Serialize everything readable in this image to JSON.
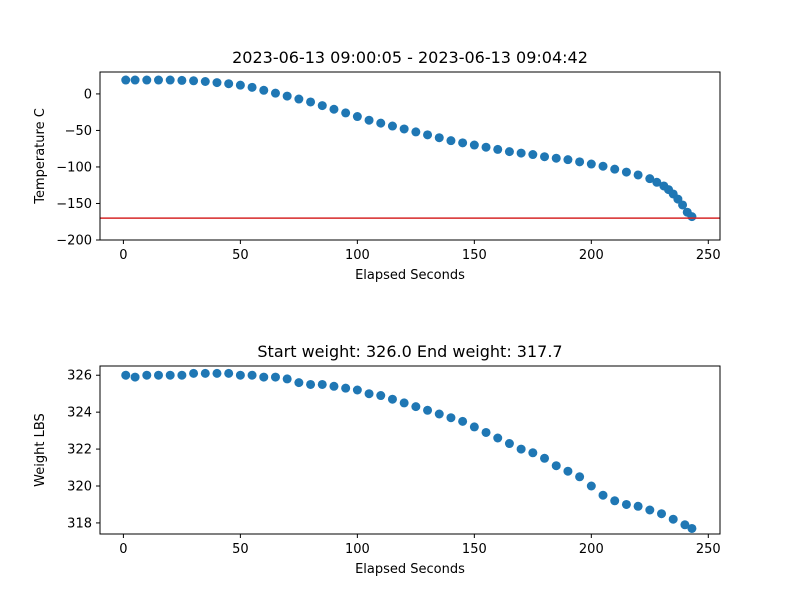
{
  "chart_data": [
    {
      "type": "scatter",
      "title": "2023-06-13 09:00:05 - 2023-06-13 09:04:42",
      "xlabel": "Elapsed Seconds",
      "ylabel": "Temperature C",
      "xlim": [
        -10,
        255
      ],
      "ylim": [
        -200,
        30
      ],
      "x_ticks": [
        0,
        50,
        100,
        150,
        200,
        250
      ],
      "y_ticks": [
        0,
        -50,
        -100,
        -150,
        -200
      ],
      "grid": false,
      "marker_color": "#1f77b4",
      "reference_line": {
        "y": -170,
        "color": "#d62728"
      },
      "series": [
        {
          "x": [
            1,
            5,
            10,
            15,
            20,
            25,
            30,
            35,
            40,
            45,
            50,
            55,
            60,
            65,
            70,
            75,
            80,
            85,
            90,
            95,
            100,
            105,
            110,
            115,
            120,
            125,
            130,
            135,
            140,
            145,
            150,
            155,
            160,
            165,
            170,
            175,
            180,
            185,
            190,
            195,
            200,
            205,
            210,
            215,
            220,
            225,
            228,
            231,
            233,
            235,
            237,
            239,
            241,
            243
          ],
          "y": [
            19,
            19,
            19,
            19,
            19,
            18.5,
            18,
            17,
            15.5,
            14,
            12,
            9,
            5,
            1,
            -3,
            -7,
            -11,
            -16,
            -21,
            -26,
            -31,
            -36,
            -40,
            -44,
            -48,
            -52,
            -56,
            -60,
            -64,
            -67,
            -70,
            -73,
            -76,
            -79,
            -81,
            -83,
            -86,
            -88,
            -90,
            -93,
            -96,
            -99,
            -103,
            -107,
            -111,
            -116,
            -121,
            -126,
            -131,
            -137,
            -144,
            -152,
            -162,
            -168
          ]
        }
      ]
    },
    {
      "type": "scatter",
      "title": "Start weight: 326.0 End weight: 317.7",
      "xlabel": "Elapsed Seconds",
      "ylabel": "Weight LBS",
      "xlim": [
        -10,
        255
      ],
      "ylim": [
        317.4,
        326.5
      ],
      "x_ticks": [
        0,
        50,
        100,
        150,
        200,
        250
      ],
      "y_ticks": [
        318,
        320,
        322,
        324,
        326
      ],
      "grid": false,
      "marker_color": "#1f77b4",
      "series": [
        {
          "x": [
            1,
            5,
            10,
            15,
            20,
            25,
            30,
            35,
            40,
            45,
            50,
            55,
            60,
            65,
            70,
            75,
            80,
            85,
            90,
            95,
            100,
            105,
            110,
            115,
            120,
            125,
            130,
            135,
            140,
            145,
            150,
            155,
            160,
            165,
            170,
            175,
            180,
            185,
            190,
            195,
            200,
            205,
            210,
            215,
            220,
            225,
            230,
            235,
            240,
            243
          ],
          "y": [
            326.0,
            325.9,
            326.0,
            326.0,
            326.0,
            326.0,
            326.1,
            326.1,
            326.1,
            326.1,
            326.0,
            326.0,
            325.9,
            325.9,
            325.8,
            325.6,
            325.5,
            325.5,
            325.4,
            325.3,
            325.2,
            325.0,
            324.9,
            324.7,
            324.5,
            324.3,
            324.1,
            323.9,
            323.7,
            323.5,
            323.2,
            322.9,
            322.6,
            322.3,
            322.0,
            321.8,
            321.5,
            321.1,
            320.8,
            320.5,
            320.0,
            319.5,
            319.2,
            319.0,
            318.9,
            318.7,
            318.5,
            318.2,
            317.9,
            317.7
          ]
        }
      ]
    }
  ]
}
